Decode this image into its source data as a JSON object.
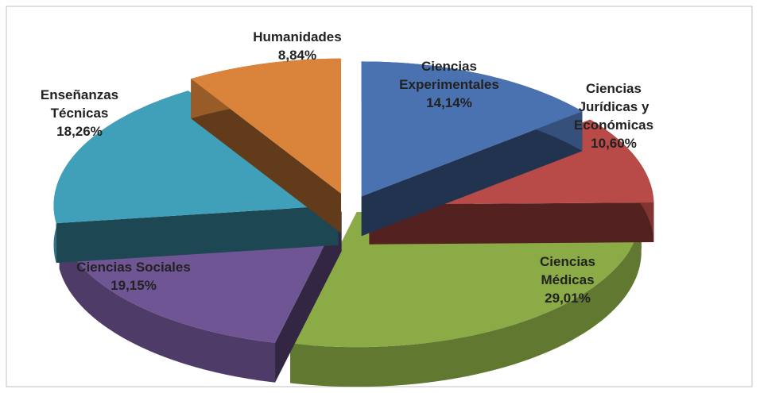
{
  "chart_data": {
    "type": "pie3d",
    "categories": [
      "Ciencias Experimentales",
      "Ciencias Jurídicas y Económicas",
      "Ciencias Médicas",
      "Ciencias Sociales",
      "Enseñanzas Técnicas",
      "Humanidades"
    ],
    "values": [
      14.14,
      10.6,
      29.01,
      19.15,
      18.26,
      8.84
    ],
    "value_labels": [
      "14,14%",
      "10,60%",
      "29,01%",
      "19,15%",
      "18,26%",
      "8,84%"
    ],
    "colors": [
      "#4a72b0",
      "#b84a47",
      "#8bab46",
      "#6f5593",
      "#41a0b9",
      "#d9833b"
    ]
  }
}
